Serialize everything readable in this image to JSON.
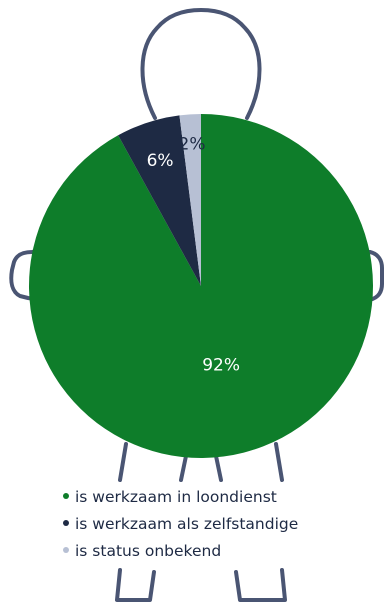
{
  "chart_data": {
    "type": "pie",
    "title": "",
    "slices": [
      {
        "label": "is werkzaam in loondienst",
        "value": 92,
        "display": "92%",
        "color": "#0e7d2a"
      },
      {
        "label": "is werkzaam als zelfstandige",
        "value": 6,
        "display": "6%",
        "color": "#1e2a44"
      },
      {
        "label": "is status onbekend",
        "value": 2,
        "display": "2%",
        "color": "#b7c0d4"
      }
    ],
    "legend_position": "bottom",
    "start_angle_deg": 0,
    "direction": "clockwise"
  },
  "colors": {
    "outline": "#4a5573",
    "text": "#1e2a44"
  },
  "icons": {
    "background": "person-outline-icon"
  }
}
